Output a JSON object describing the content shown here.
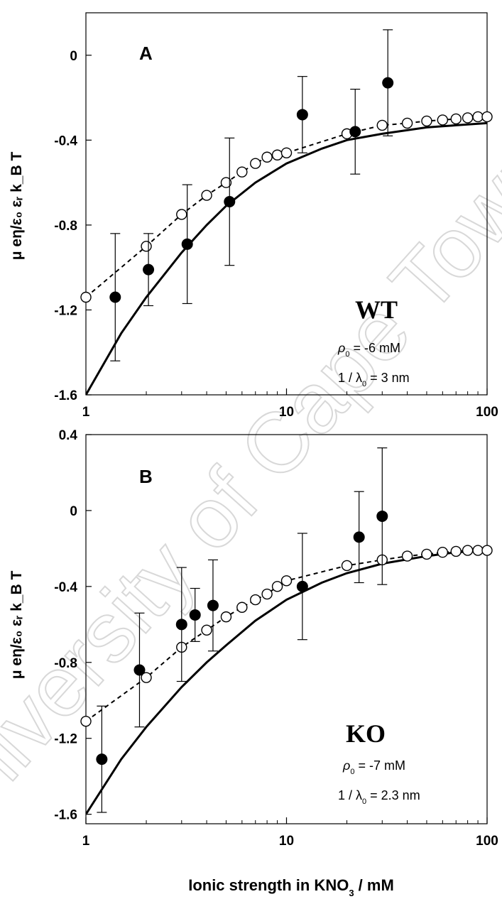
{
  "figure": {
    "xlabel": "Ionic strength in KNO",
    "xlabel_sub": "3",
    "xlabel_tail": " / mM",
    "watermark": "University of Cape Town"
  },
  "chart_data": [
    {
      "type": "scatter",
      "panel_label": "A",
      "genotype": "WT",
      "rho_symbol": "ρ",
      "rho_sub": "0",
      "rho_value": " = -6 mM",
      "lambda_prefix": "1 / λ",
      "lambda_sub": "0",
      "lambda_value": " = 3 nm",
      "ylabel": "μ eη/ε₀ εᵣ k_B T",
      "xscale": "log",
      "xlim": [
        1,
        100
      ],
      "ylim": [
        -1.6,
        0.2
      ],
      "x_ticks": [
        1,
        10,
        100
      ],
      "x_tick_labels": [
        "1",
        "10",
        "100"
      ],
      "y_ticks": [
        -1.6,
        -1.2,
        -0.8,
        -0.4,
        0
      ],
      "y_tick_labels": [
        "-1.6",
        "-1.2",
        "-0.8",
        "-0.4",
        "0"
      ],
      "series": [
        {
          "style": "filled circles with error bars",
          "x": [
            1.4,
            2.05,
            3.2,
            5.2,
            12,
            22,
            32
          ],
          "y": [
            -1.14,
            -1.01,
            -0.89,
            -0.69,
            -0.28,
            -0.36,
            -0.13
          ],
          "err": [
            0.3,
            0.17,
            0.28,
            0.3,
            0.18,
            0.2,
            0.25
          ]
        },
        {
          "style": "open circles with dashed line",
          "x": [
            1,
            2,
            3,
            4,
            5,
            6,
            7,
            8,
            9,
            10,
            20,
            30,
            40,
            50,
            60,
            70,
            80,
            90,
            100
          ],
          "y": [
            -1.14,
            -0.9,
            -0.75,
            -0.66,
            -0.6,
            -0.55,
            -0.51,
            -0.48,
            -0.47,
            -0.46,
            -0.37,
            -0.33,
            -0.32,
            -0.31,
            -0.305,
            -0.3,
            -0.295,
            -0.29,
            -0.29
          ]
        },
        {
          "style": "solid line",
          "x": [
            1,
            1.5,
            2,
            3,
            4,
            5,
            7,
            10,
            15,
            20,
            30,
            50,
            70,
            100
          ],
          "y": [
            -1.6,
            -1.31,
            -1.14,
            -0.93,
            -0.8,
            -0.71,
            -0.6,
            -0.51,
            -0.44,
            -0.4,
            -0.37,
            -0.34,
            -0.33,
            -0.32
          ]
        }
      ]
    },
    {
      "type": "scatter",
      "panel_label": "B",
      "genotype": "KO",
      "rho_symbol": "ρ",
      "rho_sub": "0",
      "rho_value": " = -7 mM",
      "lambda_prefix": "1 / λ",
      "lambda_sub": "0",
      "lambda_value": " = 2.3 nm",
      "ylabel": "μ eη/ε₀ εᵣ k_B T",
      "xscale": "log",
      "xlim": [
        1,
        100
      ],
      "ylim": [
        -1.65,
        0.4
      ],
      "x_ticks": [
        1,
        10,
        100
      ],
      "x_tick_labels": [
        "1",
        "10",
        "100"
      ],
      "y_ticks": [
        -1.6,
        -1.2,
        -0.8,
        -0.4,
        0,
        0.4
      ],
      "y_tick_labels": [
        "-1.6",
        "-1.2",
        "-0.8",
        "-0.4",
        "0",
        "0.4"
      ],
      "series": [
        {
          "style": "filled circles with error bars",
          "x": [
            1.2,
            1.85,
            3.0,
            3.5,
            4.3,
            12,
            23,
            30
          ],
          "y": [
            -1.31,
            -0.84,
            -0.6,
            -0.55,
            -0.5,
            -0.4,
            -0.14,
            -0.03
          ],
          "err": [
            0.28,
            0.3,
            0.3,
            0.14,
            0.24,
            0.28,
            0.24,
            0.36
          ]
        },
        {
          "style": "open circles with dashed line",
          "x": [
            1,
            2,
            3,
            4,
            5,
            6,
            7,
            8,
            9,
            10,
            20,
            30,
            40,
            50,
            60,
            70,
            80,
            90,
            100
          ],
          "y": [
            -1.11,
            -0.88,
            -0.72,
            -0.63,
            -0.56,
            -0.51,
            -0.47,
            -0.44,
            -0.4,
            -0.37,
            -0.29,
            -0.26,
            -0.24,
            -0.23,
            -0.22,
            -0.215,
            -0.21,
            -0.21,
            -0.21
          ]
        },
        {
          "style": "solid line",
          "x": [
            1,
            1.5,
            2,
            3,
            4,
            5,
            7,
            10,
            15,
            20,
            30,
            50,
            70,
            100
          ],
          "y": [
            -1.6,
            -1.31,
            -1.14,
            -0.93,
            -0.8,
            -0.71,
            -0.58,
            -0.47,
            -0.38,
            -0.33,
            -0.28,
            -0.24,
            -0.22,
            -0.21
          ]
        }
      ]
    }
  ]
}
